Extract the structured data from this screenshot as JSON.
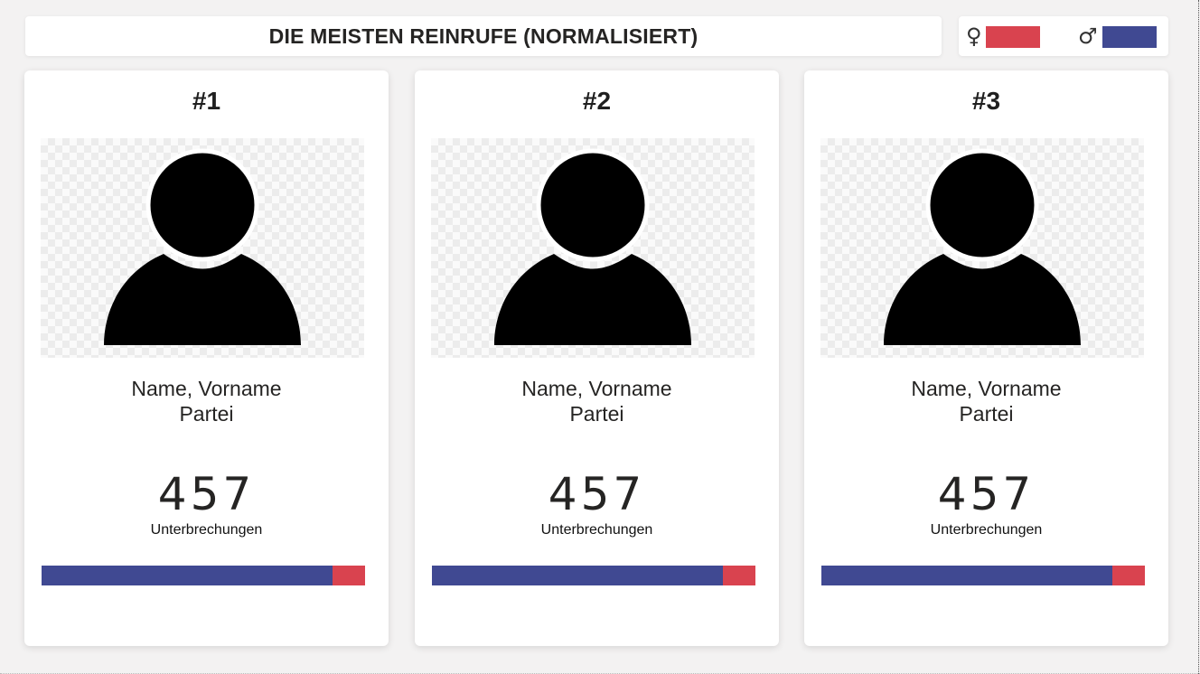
{
  "header": {
    "title": "DIE MEISTEN REINRUFE (NORMALISIERT)"
  },
  "legend": {
    "female": {
      "symbol": "♀",
      "color": "#d9434f"
    },
    "male": {
      "symbol": "♂",
      "color": "#404992"
    }
  },
  "cards": [
    {
      "rank": "#1",
      "name": "Name, Vorname",
      "party": "Partei",
      "count": "457",
      "count_label": "Unterbrechungen",
      "avatar_icon": "person-silhouette-icon",
      "male_share": 0.9,
      "female_share": 0.1
    },
    {
      "rank": "#2",
      "name": "Name, Vorname",
      "party": "Partei",
      "count": "457",
      "count_label": "Unterbrechungen",
      "avatar_icon": "person-silhouette-icon",
      "male_share": 0.9,
      "female_share": 0.1
    },
    {
      "rank": "#3",
      "name": "Name, Vorname",
      "party": "Partei",
      "count": "457",
      "count_label": "Unterbrechungen",
      "avatar_icon": "person-silhouette-icon",
      "male_share": 0.9,
      "female_share": 0.1
    }
  ]
}
